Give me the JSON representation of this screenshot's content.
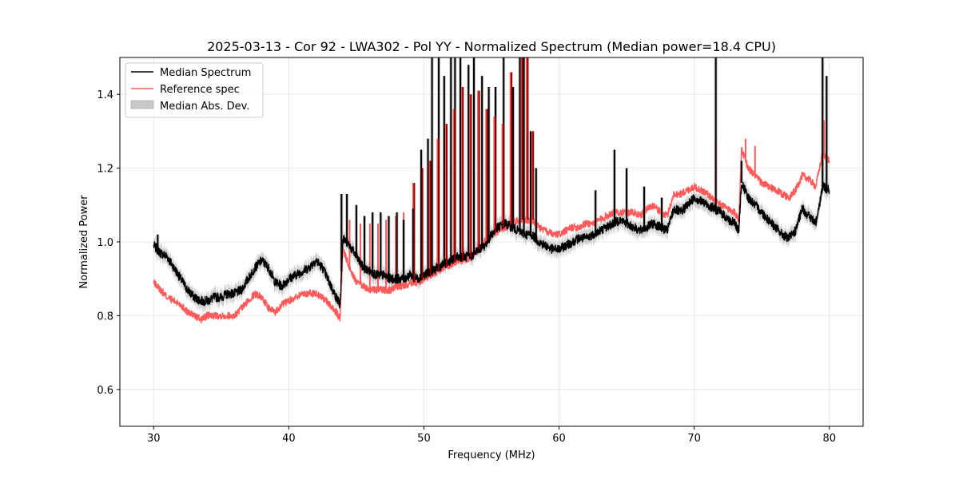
{
  "chart_data": {
    "type": "line",
    "title": "2025-03-13 - Cor 92 - LWA302 - Pol YY - Normalized Spectrum (Median power=18.4 CPU)",
    "xlabel": "Frequency (MHz)",
    "ylabel": "Normalized Power",
    "xlim": [
      27.5,
      82.5
    ],
    "ylim": [
      0.5,
      1.5
    ],
    "xticks": [
      30,
      40,
      50,
      60,
      70,
      80
    ],
    "yticks": [
      0.6,
      0.8,
      1.0,
      1.2,
      1.4
    ],
    "xtick_labels": [
      "30",
      "40",
      "50",
      "60",
      "70",
      "80"
    ],
    "ytick_labels": [
      "0.6",
      "0.8",
      "1.0",
      "1.2",
      "1.4"
    ],
    "grid": true,
    "legend_position": "top-left",
    "legend": [
      {
        "label": "Median Spectrum",
        "kind": "line",
        "color": "#000000"
      },
      {
        "label": "Reference spec",
        "kind": "line",
        "color": "#ff5a5a"
      },
      {
        "label": "Median Abs. Dev.",
        "kind": "patch",
        "color": "#c8c8c8"
      }
    ],
    "series": [
      {
        "name": "Median Spectrum",
        "color": "#000000",
        "x": [
          30.0,
          30.5,
          31.0,
          31.5,
          32.0,
          32.5,
          33.0,
          33.5,
          34.0,
          34.5,
          35.0,
          35.5,
          36.0,
          36.5,
          37.0,
          37.5,
          38.0,
          38.5,
          39.0,
          39.5,
          40.0,
          40.5,
          41.0,
          41.5,
          42.0,
          42.5,
          43.0,
          43.5,
          43.8,
          44.0,
          44.5,
          45.0,
          45.5,
          46.0,
          46.5,
          47.0,
          47.5,
          48.0,
          48.5,
          49.0,
          49.5,
          50.0,
          50.5,
          51.0,
          51.5,
          52.0,
          52.5,
          53.0,
          53.5,
          54.0,
          54.5,
          55.0,
          55.5,
          56.0,
          56.5,
          57.0,
          57.5,
          58.0,
          58.5,
          59.0,
          59.5,
          60.0,
          60.5,
          61.0,
          61.5,
          62.0,
          62.5,
          63.0,
          63.5,
          64.0,
          64.5,
          65.0,
          65.5,
          66.0,
          66.5,
          67.0,
          67.5,
          68.0,
          68.5,
          69.0,
          69.5,
          70.0,
          70.5,
          71.0,
          71.5,
          72.0,
          72.5,
          73.0,
          73.3,
          73.5,
          74.0,
          74.5,
          75.0,
          75.5,
          76.0,
          76.5,
          77.0,
          77.5,
          78.0,
          78.5,
          79.0,
          79.5,
          80.0
        ],
        "y": [
          0.99,
          0.97,
          0.96,
          0.93,
          0.9,
          0.87,
          0.85,
          0.84,
          0.84,
          0.85,
          0.85,
          0.86,
          0.86,
          0.87,
          0.9,
          0.93,
          0.95,
          0.93,
          0.89,
          0.88,
          0.9,
          0.91,
          0.92,
          0.93,
          0.95,
          0.93,
          0.89,
          0.85,
          0.83,
          1.01,
          0.99,
          0.96,
          0.93,
          0.92,
          0.91,
          0.91,
          0.9,
          0.9,
          0.9,
          0.91,
          0.9,
          0.91,
          0.92,
          0.93,
          0.94,
          0.95,
          0.96,
          0.96,
          0.96,
          0.98,
          0.99,
          1.02,
          1.04,
          1.05,
          1.04,
          1.03,
          1.02,
          1.02,
          1.0,
          0.99,
          0.98,
          0.98,
          0.99,
          1.0,
          1.01,
          1.01,
          1.02,
          1.03,
          1.04,
          1.05,
          1.06,
          1.05,
          1.04,
          1.03,
          1.04,
          1.05,
          1.04,
          1.03,
          1.09,
          1.08,
          1.1,
          1.12,
          1.11,
          1.1,
          1.09,
          1.08,
          1.06,
          1.05,
          1.03,
          1.16,
          1.12,
          1.1,
          1.08,
          1.06,
          1.04,
          1.02,
          1.01,
          1.03,
          1.09,
          1.07,
          1.05,
          1.15,
          1.14
        ]
      },
      {
        "name": "Reference spec",
        "color": "#ff5a5a",
        "x": [
          30.0,
          30.5,
          31.0,
          31.5,
          32.0,
          32.5,
          33.0,
          33.5,
          34.0,
          34.5,
          35.0,
          35.5,
          36.0,
          36.5,
          37.0,
          37.5,
          38.0,
          38.5,
          39.0,
          39.5,
          40.0,
          40.5,
          41.0,
          41.5,
          42.0,
          42.5,
          43.0,
          43.5,
          43.8,
          44.0,
          44.5,
          45.0,
          45.5,
          46.0,
          46.5,
          47.0,
          47.5,
          48.0,
          48.5,
          49.0,
          49.5,
          50.0,
          50.5,
          51.0,
          51.5,
          52.0,
          52.5,
          53.0,
          53.5,
          54.0,
          54.5,
          55.0,
          55.5,
          56.0,
          56.5,
          57.0,
          57.5,
          58.0,
          58.5,
          59.0,
          59.5,
          60.0,
          60.5,
          61.0,
          61.5,
          62.0,
          62.5,
          63.0,
          63.5,
          64.0,
          64.5,
          65.0,
          65.5,
          66.0,
          66.5,
          67.0,
          67.5,
          68.0,
          68.5,
          69.0,
          69.5,
          70.0,
          70.5,
          71.0,
          71.5,
          72.0,
          72.5,
          73.0,
          73.3,
          73.5,
          74.0,
          74.5,
          75.0,
          75.5,
          76.0,
          76.5,
          77.0,
          77.5,
          78.0,
          78.5,
          79.0,
          79.5,
          80.0
        ],
        "y": [
          0.89,
          0.87,
          0.85,
          0.84,
          0.83,
          0.81,
          0.8,
          0.79,
          0.8,
          0.8,
          0.8,
          0.8,
          0.8,
          0.82,
          0.84,
          0.86,
          0.85,
          0.82,
          0.81,
          0.83,
          0.84,
          0.85,
          0.86,
          0.86,
          0.86,
          0.85,
          0.83,
          0.81,
          0.79,
          0.98,
          0.93,
          0.89,
          0.88,
          0.87,
          0.87,
          0.87,
          0.87,
          0.88,
          0.88,
          0.89,
          0.89,
          0.9,
          0.91,
          0.92,
          0.93,
          0.94,
          0.95,
          0.95,
          0.96,
          0.98,
          1.0,
          1.02,
          1.03,
          1.04,
          1.05,
          1.06,
          1.06,
          1.06,
          1.04,
          1.03,
          1.02,
          1.02,
          1.03,
          1.04,
          1.04,
          1.05,
          1.05,
          1.06,
          1.07,
          1.08,
          1.08,
          1.08,
          1.08,
          1.07,
          1.09,
          1.1,
          1.08,
          1.07,
          1.13,
          1.13,
          1.14,
          1.15,
          1.14,
          1.13,
          1.11,
          1.1,
          1.09,
          1.08,
          1.06,
          1.25,
          1.2,
          1.18,
          1.16,
          1.15,
          1.14,
          1.13,
          1.12,
          1.14,
          1.18,
          1.17,
          1.15,
          1.24,
          1.22
        ]
      }
    ],
    "mad_band": {
      "name": "Median Abs. Dev.",
      "color": "#c8c8c8",
      "half_width": 0.02
    },
    "spikes": {
      "median": [
        [
          30.3,
          1.02
        ],
        [
          43.9,
          1.13
        ],
        [
          44.3,
          1.13
        ],
        [
          45.0,
          1.1
        ],
        [
          45.6,
          1.07
        ],
        [
          46.2,
          1.08
        ],
        [
          46.8,
          1.08
        ],
        [
          47.4,
          1.07
        ],
        [
          48.0,
          1.08
        ],
        [
          48.5,
          1.06
        ],
        [
          49.2,
          1.09
        ],
        [
          49.8,
          1.25
        ],
        [
          50.3,
          1.28
        ],
        [
          50.6,
          1.5
        ],
        [
          51.1,
          1.5
        ],
        [
          51.5,
          1.45
        ],
        [
          52.0,
          1.5
        ],
        [
          52.3,
          1.5
        ],
        [
          52.7,
          1.5
        ],
        [
          53.3,
          1.48
        ],
        [
          53.7,
          1.5
        ],
        [
          54.3,
          1.45
        ],
        [
          54.8,
          1.42
        ],
        [
          55.3,
          1.42
        ],
        [
          55.9,
          1.5
        ],
        [
          56.6,
          1.42
        ],
        [
          57.1,
          1.5
        ],
        [
          57.4,
          1.5
        ],
        [
          57.9,
          1.3
        ],
        [
          58.3,
          1.2
        ],
        [
          62.7,
          1.14
        ],
        [
          64.1,
          1.25
        ],
        [
          65.0,
          1.2
        ],
        [
          66.3,
          1.15
        ],
        [
          67.6,
          1.12
        ],
        [
          71.6,
          1.5
        ],
        [
          73.5,
          1.22
        ],
        [
          79.5,
          1.5
        ],
        [
          79.8,
          1.45
        ]
      ],
      "reference": [
        [
          43.9,
          1.06
        ],
        [
          44.5,
          1.06
        ],
        [
          45.3,
          1.05
        ],
        [
          46.0,
          1.05
        ],
        [
          46.6,
          1.05
        ],
        [
          47.2,
          1.06
        ],
        [
          47.9,
          1.07
        ],
        [
          48.5,
          1.08
        ],
        [
          49.2,
          1.16
        ],
        [
          49.8,
          1.2
        ],
        [
          50.4,
          1.22
        ],
        [
          51.0,
          1.28
        ],
        [
          51.6,
          1.32
        ],
        [
          52.2,
          1.36
        ],
        [
          52.8,
          1.42
        ],
        [
          53.4,
          1.4
        ],
        [
          54.0,
          1.41
        ],
        [
          54.6,
          1.36
        ],
        [
          55.2,
          1.34
        ],
        [
          55.8,
          1.32
        ],
        [
          56.4,
          1.46
        ],
        [
          57.2,
          1.5
        ],
        [
          57.6,
          1.5
        ],
        [
          58.0,
          1.3
        ],
        [
          71.6,
          1.28
        ],
        [
          73.8,
          1.28
        ],
        [
          74.5,
          1.26
        ],
        [
          79.6,
          1.33
        ]
      ]
    }
  }
}
